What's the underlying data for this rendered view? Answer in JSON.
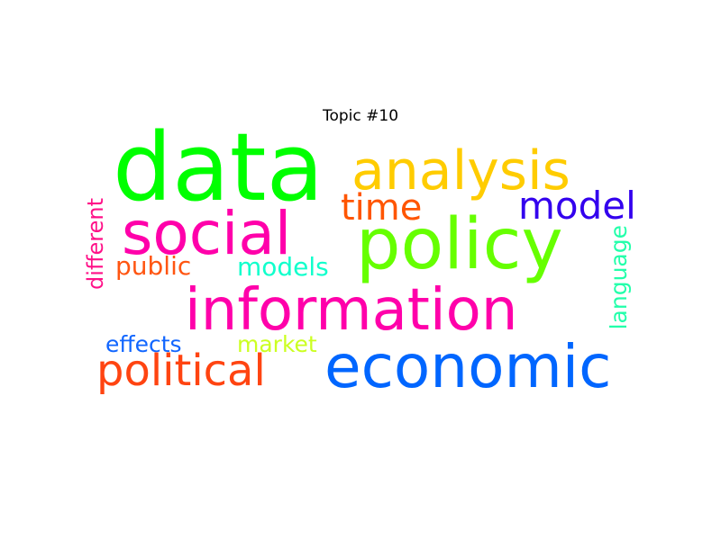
{
  "chart_data": {
    "type": "wordcloud",
    "title": "Topic #10",
    "words": [
      {
        "text": "data",
        "color": "#00ff00",
        "orientation": "horizontal"
      },
      {
        "text": "analysis",
        "color": "#ffcc00",
        "orientation": "horizontal"
      },
      {
        "text": "social",
        "color": "#ff00aa",
        "orientation": "horizontal"
      },
      {
        "text": "policy",
        "color": "#66ff00",
        "orientation": "horizontal"
      },
      {
        "text": "time",
        "color": "#ff5500",
        "orientation": "horizontal"
      },
      {
        "text": "model",
        "color": "#3300ee",
        "orientation": "horizontal"
      },
      {
        "text": "public",
        "color": "#ff5511",
        "orientation": "horizontal"
      },
      {
        "text": "models",
        "color": "#11ffcc",
        "orientation": "horizontal"
      },
      {
        "text": "information",
        "color": "#ff00aa",
        "orientation": "horizontal"
      },
      {
        "text": "different",
        "color": "#ff1188",
        "orientation": "vertical"
      },
      {
        "text": "language",
        "color": "#22ffaa",
        "orientation": "vertical"
      },
      {
        "text": "effects",
        "color": "#1166ff",
        "orientation": "horizontal"
      },
      {
        "text": "market",
        "color": "#ccff22",
        "orientation": "horizontal"
      },
      {
        "text": "political",
        "color": "#ff4411",
        "orientation": "horizontal"
      },
      {
        "text": "economic",
        "color": "#0066ff",
        "orientation": "horizontal"
      }
    ]
  }
}
